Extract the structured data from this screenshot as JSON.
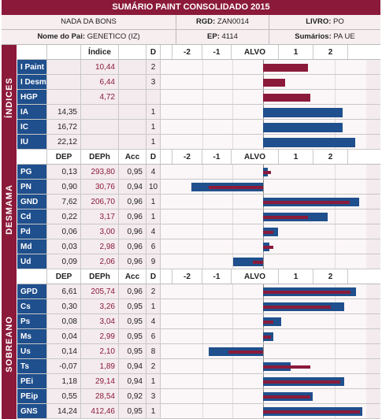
{
  "title": "SUMÁRIO PAINT CONSOLIDADO 2015",
  "info": {
    "name": "NADA DA BONS",
    "rgd_label": "RGD:",
    "rgd_value": "ZAN0014",
    "livro_label": "LIVRO:",
    "livro_value": "PO",
    "pai_label": "Nome do Pai:",
    "pai_value": "GENETICO (IZ)",
    "ep_label": "EP:",
    "ep_value": "4114",
    "sum_label": "Sumários:",
    "sum_value": "PA UE"
  },
  "scale_labels": [
    "-2",
    "-1",
    "ALVO",
    "1",
    "2"
  ],
  "col_headers": {
    "indice": "Índice",
    "dep": "DEP",
    "deph": "DEPh",
    "acc": "Acc",
    "d": "D"
  },
  "colors": {
    "accent": "#8b1a3a",
    "blue": "#1f4f8c"
  },
  "chart_data": [
    {
      "type": "bar",
      "section": "ÍNDICES",
      "rows": [
        {
          "trait": "I Paint",
          "dep": "",
          "indice": "10,44",
          "d": "2",
          "red": 0.45,
          "blue": null
        },
        {
          "trait": "I Desm",
          "dep": "",
          "indice": "6,44",
          "d": "3",
          "red": 0.22,
          "blue": null
        },
        {
          "trait": "HGP",
          "dep": "",
          "indice": "4,72",
          "d": "",
          "red": 0.48,
          "blue": null
        },
        {
          "trait": "IA",
          "dep": "14,35",
          "indice": "",
          "d": "1",
          "red": null,
          "blue": 0.8
        },
        {
          "trait": "IC",
          "dep": "16,72",
          "indice": "",
          "d": "1",
          "red": null,
          "blue": 0.8
        },
        {
          "trait": "IU",
          "dep": "22,12",
          "indice": "",
          "d": "1",
          "red": null,
          "blue": 0.93
        }
      ]
    },
    {
      "type": "bar",
      "section": "DESMAMA",
      "rows": [
        {
          "trait": "PG",
          "dep": "0,13",
          "deph": "293,80",
          "acc": "0,95",
          "d": "4",
          "red": 0.08,
          "blue": 0.05
        },
        {
          "trait": "PN",
          "dep": "0,90",
          "deph": "30,76",
          "acc": "0,94",
          "d": "10",
          "red": -0.55,
          "blue": -0.72
        },
        {
          "trait": "GND",
          "dep": "7,62",
          "deph": "206,70",
          "acc": "0,96",
          "d": "1",
          "red": 0.87,
          "blue": 0.97
        },
        {
          "trait": "Cd",
          "dep": "0,22",
          "deph": "3,17",
          "acc": "0,96",
          "d": "1",
          "red": 0.45,
          "blue": 0.65
        },
        {
          "trait": "Pd",
          "dep": "0,06",
          "deph": "3,00",
          "acc": "0,96",
          "d": "4",
          "red": 0.1,
          "blue": 0.15
        },
        {
          "trait": "Md",
          "dep": "0,03",
          "deph": "2,98",
          "acc": "0,96",
          "d": "6",
          "red": 0.1,
          "blue": 0.06
        },
        {
          "trait": "Ud",
          "dep": "0,09",
          "deph": "2,06",
          "acc": "0,96",
          "d": "9",
          "red": -0.1,
          "blue": -0.3
        }
      ]
    },
    {
      "type": "bar",
      "section": "SOBREANO",
      "rows": [
        {
          "trait": "GPD",
          "dep": "6,61",
          "deph": "205,74",
          "acc": "0,96",
          "d": "2",
          "red": 0.88,
          "blue": 0.94
        },
        {
          "trait": "Cs",
          "dep": "0,30",
          "deph": "3,26",
          "acc": "0,95",
          "d": "1",
          "red": 0.68,
          "blue": 0.82
        },
        {
          "trait": "Ps",
          "dep": "0,08",
          "deph": "3,04",
          "acc": "0,95",
          "d": "4",
          "red": 0.1,
          "blue": 0.18
        },
        {
          "trait": "Ms",
          "dep": "0,04",
          "deph": "2,99",
          "acc": "0,95",
          "d": "6",
          "red": 0.08,
          "blue": 0.1
        },
        {
          "trait": "Us",
          "dep": "0,14",
          "deph": "2,10",
          "acc": "0,95",
          "d": "8",
          "red": -0.35,
          "blue": -0.55
        },
        {
          "trait": "Ts",
          "dep": "-0,07",
          "deph": "1,89",
          "acc": "0,94",
          "d": "2",
          "red": 0.48,
          "blue": 0.28
        },
        {
          "trait": "PEi",
          "dep": "1,18",
          "deph": "29,14",
          "acc": "0,94",
          "d": "1",
          "red": 0.78,
          "blue": 0.82
        },
        {
          "trait": "PEip",
          "dep": "0,55",
          "deph": "28,54",
          "acc": "0,92",
          "d": "3",
          "red": 0.48,
          "blue": 0.5
        },
        {
          "trait": "GNS",
          "dep": "14,24",
          "deph": "412,46",
          "acc": "0,95",
          "d": "1",
          "red": 0.98,
          "blue": 1.0
        }
      ]
    }
  ]
}
